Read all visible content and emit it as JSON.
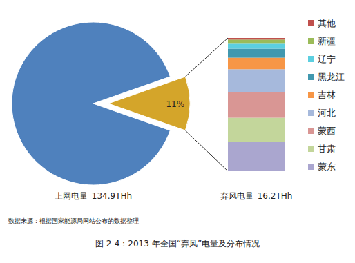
{
  "chart_data": {
    "type": "pie",
    "title": "图 2-4：2013 年全国“弃风”电量及分布情况",
    "source": "数据来源：根据国家能源局网站公布的数据整理",
    "categories": [
      "上网电量",
      "弃风电量"
    ],
    "values": [
      134.9,
      16.2
    ],
    "value_labels": [
      "134.9THh",
      "16.2THh"
    ],
    "colors": [
      "#4f81bd",
      "#d4a52a"
    ],
    "annotations": [
      "11%"
    ],
    "breakdown": {
      "type": "bar",
      "stacked": true,
      "legend": "right",
      "categories": [
        "蒙东",
        "甘肃",
        "蒙西",
        "河北",
        "吉林",
        "黑龙江",
        "辽宁",
        "新疆",
        "其他"
      ],
      "values": [
        3.6,
        2.9,
        3.1,
        2.8,
        1.4,
        1.1,
        0.6,
        0.5,
        0.2
      ],
      "colors": [
        "#aaa6cf",
        "#c3d69b",
        "#d99694",
        "#a6b9dc",
        "#f79646",
        "#4198af",
        "#5ccfe0",
        "#9bbb59",
        "#c0504d"
      ]
    }
  }
}
